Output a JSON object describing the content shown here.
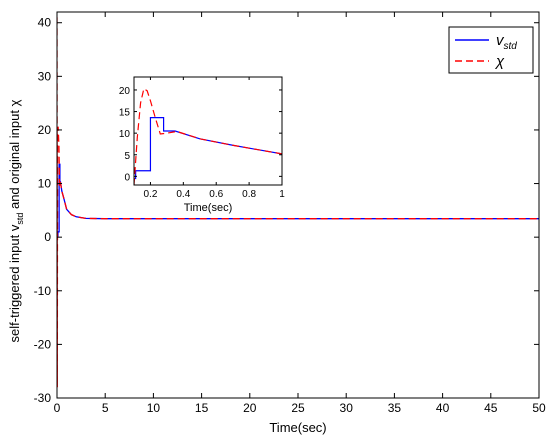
{
  "chart_data": {
    "type": "line",
    "xlabel": "Time(sec)",
    "ylabel": {
      "prefix": "self-triggered input v",
      "subscript": "std",
      "suffix": " and original input χ"
    },
    "xlim": [
      0,
      50
    ],
    "ylim": [
      -30,
      42
    ],
    "xticks": [
      0,
      5,
      10,
      15,
      20,
      25,
      30,
      35,
      40,
      45,
      50
    ],
    "yticks": [
      -30,
      -20,
      -10,
      0,
      10,
      20,
      30,
      40
    ],
    "grid": false,
    "legend_position": "top-right",
    "legend": [
      {
        "label_main": "v",
        "label_sub": "std",
        "color": "#0000ff",
        "dash": "solid"
      },
      {
        "label_main": "χ",
        "label_sub": "",
        "color": "#ff0000",
        "dash": "dashed"
      }
    ],
    "series": [
      {
        "name": "v_std",
        "color": "#0000ff",
        "dash": "solid",
        "points": [
          [
            0,
            0.2
          ],
          [
            0.1,
            0.2
          ],
          [
            0.1,
            1
          ],
          [
            0.22,
            1
          ],
          [
            0.22,
            13.6
          ],
          [
            0.3,
            13.6
          ],
          [
            0.3,
            10.3
          ],
          [
            0.36,
            10.3
          ],
          [
            0.5,
            8.6
          ],
          [
            0.7,
            7.3
          ],
          [
            1.0,
            5.2
          ],
          [
            1.5,
            4.2
          ],
          [
            2.0,
            3.8
          ],
          [
            3.0,
            3.5
          ],
          [
            5.0,
            3.45
          ],
          [
            50,
            3.45
          ]
        ]
      },
      {
        "name": "χ",
        "color": "#ff0000",
        "dash": "dashed",
        "points": [
          [
            0,
            41
          ],
          [
            0.03,
            -28
          ],
          [
            0.06,
            20.5
          ],
          [
            0.12,
            20.5
          ],
          [
            0.2,
            17
          ],
          [
            0.26,
            9.5
          ],
          [
            0.35,
            10.3
          ],
          [
            0.5,
            8.6
          ],
          [
            0.7,
            7.3
          ],
          [
            1.0,
            5.2
          ],
          [
            1.5,
            4.2
          ],
          [
            2.0,
            3.8
          ],
          [
            3.0,
            3.5
          ],
          [
            5.0,
            3.45
          ],
          [
            50,
            3.45
          ]
        ]
      }
    ],
    "inset": {
      "xlabel": "Time(sec)",
      "xlim": [
        0.1,
        1.0
      ],
      "ylim": [
        -2,
        23
      ],
      "xticks": [
        0.2,
        0.4,
        0.6,
        0.8,
        1
      ],
      "yticks": [
        0,
        5,
        10,
        15,
        20
      ],
      "series": [
        {
          "name": "v_std",
          "color": "#0000ff",
          "dash": "solid",
          "points": [
            [
              0.1,
              -0.5
            ],
            [
              0.11,
              -0.5
            ],
            [
              0.11,
              1.3
            ],
            [
              0.2,
              1.3
            ],
            [
              0.2,
              13.6
            ],
            [
              0.28,
              13.6
            ],
            [
              0.28,
              10.5
            ],
            [
              0.35,
              10.5
            ],
            [
              0.5,
              8.7
            ],
            [
              0.7,
              7.2
            ],
            [
              0.85,
              6.2
            ],
            [
              1.0,
              5.2
            ]
          ]
        },
        {
          "name": "χ",
          "color": "#ff0000",
          "dash": "dashed",
          "points": [
            [
              0.1,
              -2
            ],
            [
              0.12,
              9
            ],
            [
              0.14,
              17
            ],
            [
              0.16,
              20.3
            ],
            [
              0.18,
              19.8
            ],
            [
              0.2,
              17.5
            ],
            [
              0.23,
              13.5
            ],
            [
              0.26,
              9.8
            ],
            [
              0.3,
              10
            ],
            [
              0.36,
              10.4
            ],
            [
              0.5,
              8.7
            ],
            [
              0.7,
              7.2
            ],
            [
              0.85,
              6.2
            ],
            [
              1.0,
              5.2
            ]
          ]
        }
      ]
    }
  }
}
